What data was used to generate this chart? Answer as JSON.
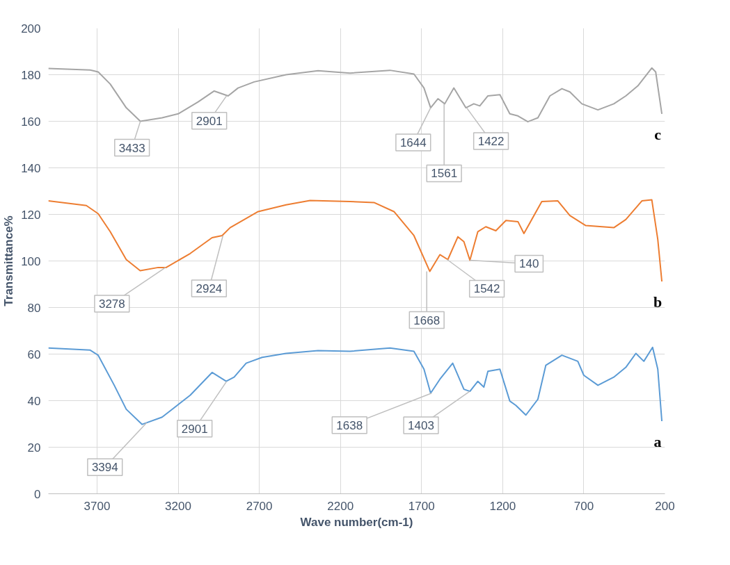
{
  "chart_data": {
    "type": "line",
    "xlabel": "Wave number(cm-1)",
    "ylabel": "Transmittance%",
    "xlim": [
      4000,
      200
    ],
    "xticks": [
      3700,
      3200,
      2700,
      2200,
      1700,
      1200,
      700,
      200
    ],
    "ylim": [
      0,
      200
    ],
    "yticks": [
      0,
      20,
      40,
      60,
      80,
      100,
      120,
      140,
      160,
      180,
      200
    ],
    "grid": true,
    "marker": "none",
    "line_style": "solid",
    "series": [
      {
        "name": "c",
        "color": "#a5a5a5",
        "x": [
          4000,
          3742,
          3693,
          3619,
          3520,
          3433,
          3299,
          3200,
          3077,
          2978,
          2929,
          2892,
          2831,
          2732,
          2535,
          2338,
          2141,
          1895,
          1747,
          1685,
          1644,
          1599,
          1557,
          1501,
          1427,
          1378,
          1341,
          1291,
          1217,
          1156,
          1106,
          1045,
          983,
          909,
          835,
          786,
          712,
          613,
          515,
          441,
          367,
          281,
          257,
          219
        ],
        "values": [
          182.7,
          182,
          181.2,
          176,
          165.8,
          160,
          161.5,
          163.2,
          168.3,
          173,
          171.8,
          170.9,
          174.3,
          176.9,
          180,
          181.7,
          180.7,
          181.9,
          180.3,
          174.3,
          165.8,
          169.7,
          167.5,
          174.3,
          165.8,
          167.5,
          166.6,
          170.9,
          171.4,
          163.2,
          162.3,
          159.8,
          161.5,
          170.9,
          174,
          172.6,
          167.5,
          164.9,
          167.5,
          170.9,
          175.2,
          182.9,
          181.2,
          163.2
        ]
      },
      {
        "name": "b",
        "color": "#ed7d31",
        "x": [
          4000,
          3766,
          3693,
          3619,
          3520,
          3434,
          3323,
          3274,
          3126,
          2991,
          2929,
          2880,
          2707,
          2535,
          2387,
          2141,
          1993,
          1870,
          1747,
          1649,
          1587,
          1538,
          1476,
          1439,
          1402,
          1353,
          1304,
          1242,
          1180,
          1106,
          1069,
          959,
          860,
          786,
          688,
          515,
          441,
          342,
          281,
          244,
          219
        ],
        "values": [
          125.8,
          123.8,
          120.3,
          112.6,
          100.6,
          95.8,
          97.2,
          97.2,
          103.2,
          110,
          110.9,
          114.3,
          121.2,
          124.1,
          126,
          125.5,
          125.1,
          121.2,
          110.9,
          95.5,
          102.7,
          100.6,
          110.4,
          108.3,
          100.3,
          112.6,
          114.7,
          113,
          117.4,
          116.9,
          111.8,
          125.5,
          125.8,
          119.5,
          115.2,
          114.3,
          117.8,
          125.8,
          126.3,
          109.2,
          91.2
        ]
      },
      {
        "name": "a",
        "color": "#5b9bd5",
        "x": [
          4000,
          3742,
          3693,
          3594,
          3520,
          3422,
          3299,
          3126,
          2991,
          2904,
          2855,
          2781,
          2683,
          2535,
          2338,
          2141,
          1895,
          1747,
          1685,
          1644,
          1587,
          1508,
          1439,
          1402,
          1353,
          1316,
          1291,
          1217,
          1156,
          1119,
          1057,
          983,
          934,
          835,
          737,
          700,
          613,
          515,
          441,
          379,
          330,
          276,
          244,
          219
        ],
        "values": [
          62.6,
          61.7,
          59.5,
          46.6,
          36.3,
          29.8,
          32.9,
          42.3,
          52.1,
          48.3,
          50.1,
          56.1,
          58.6,
          60.3,
          61.5,
          61.2,
          62.6,
          61.2,
          53.5,
          43.2,
          49.2,
          56.1,
          44.9,
          44,
          48.3,
          45.8,
          52.6,
          53.5,
          39.8,
          38,
          33.8,
          40.6,
          55.2,
          59.5,
          56.9,
          50.9,
          46.6,
          50.1,
          54.3,
          60.3,
          56.9,
          62.9,
          53.5,
          31.2
        ]
      }
    ],
    "annotations": [
      {
        "text": "3433",
        "x": 3433,
        "y": 160
      },
      {
        "text": "2901",
        "x": 2901,
        "y": 171
      },
      {
        "text": "1644",
        "x": 1644,
        "y": 165.8
      },
      {
        "text": "1561",
        "x": 1561,
        "y": 167.5
      },
      {
        "text": "1422",
        "x": 1422,
        "y": 165.8
      },
      {
        "text": "3278",
        "x": 3278,
        "y": 97.2
      },
      {
        "text": "2924",
        "x": 2924,
        "y": 110.9
      },
      {
        "text": "1668",
        "x": 1668,
        "y": 95.5
      },
      {
        "text": "1542",
        "x": 1542,
        "y": 100.6
      },
      {
        "text": "140",
        "x": 1402,
        "y": 100.3
      },
      {
        "text": "3394",
        "x": 3394,
        "y": 30.5
      },
      {
        "text": "2901",
        "x": 2901,
        "y": 48.3
      },
      {
        "text": "1638",
        "x": 1638,
        "y": 43.2
      },
      {
        "text": "1403",
        "x": 1403,
        "y": 44
      }
    ]
  }
}
